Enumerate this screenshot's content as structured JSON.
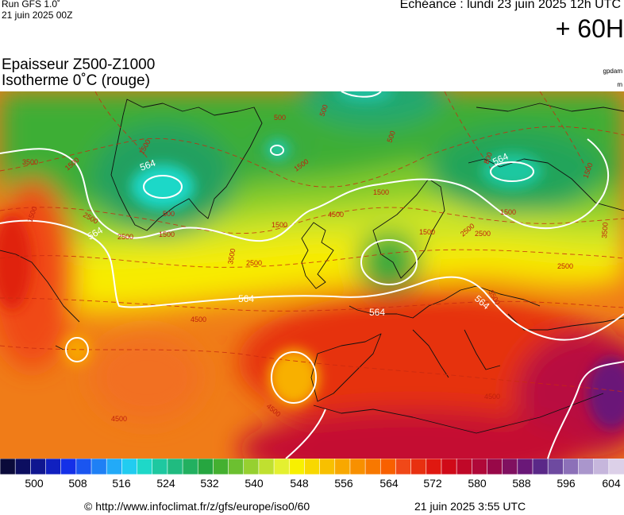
{
  "header": {
    "run_label": "Run GFS 1.0˚",
    "run_date": "21 juin 2025 00Z",
    "echeance": "Echéance : lundi 23 juin 2025 12h UTC",
    "lead_time": "+ 60H"
  },
  "panel": {
    "title_line1": "Epaisseur Z500-Z1000",
    "title_line2": "Isotherme 0˚C (rouge)",
    "unit1": "gpdam",
    "unit2": "m"
  },
  "contours": {
    "thickness_labels": [
      "564",
      "564",
      "564",
      "564",
      "564",
      "564"
    ],
    "iso0_labels": [
      "3500",
      "2500",
      "1500",
      "500",
      "1500",
      "2500",
      "1500",
      "500",
      "500",
      "1500",
      "1500",
      "1500",
      "2500",
      "3500",
      "2500",
      "4500",
      "4500",
      "4500",
      "4500",
      "1500",
      "1500",
      "1500",
      "2500",
      "2500",
      "3500",
      "4500",
      "1500",
      "500",
      "3500",
      "500"
    ]
  },
  "colorbar": {
    "colors": [
      "#0a0a3a",
      "#0c0e60",
      "#0f1690",
      "#1020c0",
      "#1430e8",
      "#1a55f0",
      "#1f80f5",
      "#22aaf8",
      "#22ccf0",
      "#1ed8c8",
      "#1ec8a0",
      "#20bb80",
      "#22b060",
      "#26a640",
      "#44b030",
      "#6cc030",
      "#96d030",
      "#c0e030",
      "#e4f030",
      "#f8f000",
      "#f8d800",
      "#f8c000",
      "#f8a800",
      "#f89000",
      "#f87800",
      "#f86000",
      "#f04818",
      "#e83010",
      "#e01810",
      "#d00a18",
      "#c00828",
      "#b00838",
      "#980848",
      "#801060",
      "#6a1878",
      "#5a2888",
      "#6e4aa0",
      "#8c70b8",
      "#aa96cc",
      "#c6b6dc",
      "#dcd0e8"
    ],
    "tick_labels": [
      "500",
      "508",
      "516",
      "524",
      "532",
      "540",
      "548",
      "556",
      "564",
      "572",
      "580",
      "588",
      "596",
      "604"
    ]
  },
  "footer": {
    "url": "© http://www.infoclimat.fr/z/gfs/europe/iso0/60",
    "timestamp": "21 juin 2025  3:55 UTC"
  }
}
